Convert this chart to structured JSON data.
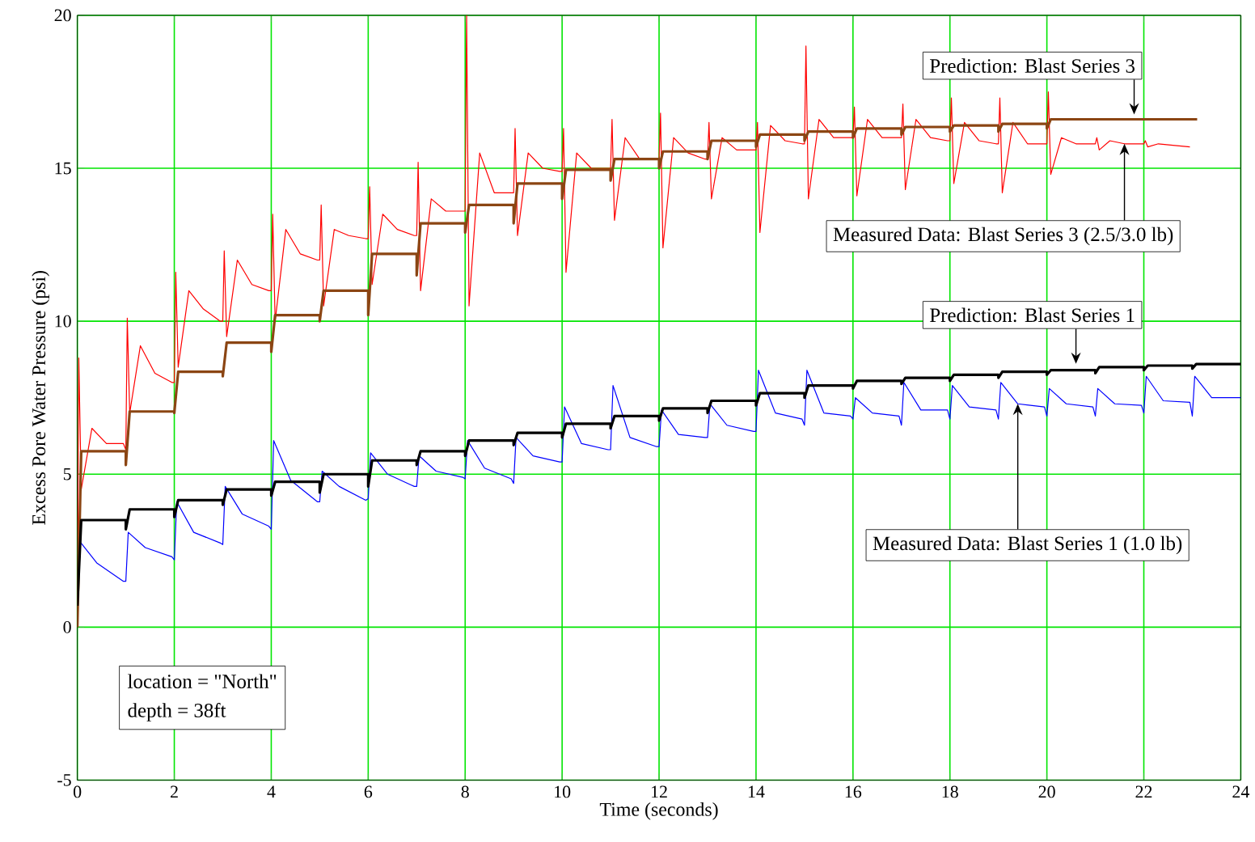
{
  "chart_data": {
    "type": "line",
    "xlabel": "Time (seconds)",
    "ylabel": "Excess Pore Water Pressure (psi)",
    "xlim": [
      0,
      24
    ],
    "ylim": [
      -5,
      20
    ],
    "xticks": [
      0,
      2,
      4,
      6,
      8,
      10,
      12,
      14,
      16,
      18,
      20,
      22,
      24
    ],
    "yticks": [
      -5,
      0,
      5,
      10,
      15,
      20
    ],
    "grid": true,
    "series": [
      {
        "color": "#ff0000",
        "x": [
          0,
          0.03,
          0.08,
          0.3,
          0.6,
          0.95,
          1,
          1.03,
          1.08,
          1.3,
          1.6,
          1.95,
          2,
          2.03,
          2.08,
          2.3,
          2.6,
          2.95,
          3,
          3.03,
          3.08,
          3.3,
          3.6,
          3.95,
          4,
          4.03,
          4.08,
          4.3,
          4.6,
          4.95,
          5,
          5.03,
          5.08,
          5.3,
          5.6,
          5.95,
          6,
          6.03,
          6.08,
          6.3,
          6.6,
          6.95,
          7,
          7.03,
          7.08,
          7.3,
          7.6,
          7.95,
          8,
          8.03,
          8.08,
          8.3,
          8.6,
          8.95,
          9,
          9.03,
          9.08,
          9.3,
          9.6,
          9.95,
          10,
          10.03,
          10.08,
          10.3,
          10.6,
          10.95,
          11,
          11.03,
          11.08,
          11.3,
          11.6,
          11.95,
          12,
          12.03,
          12.08,
          12.3,
          12.6,
          12.95,
          13,
          13.03,
          13.08,
          13.3,
          13.6,
          13.95,
          14,
          14.03,
          14.08,
          14.3,
          14.6,
          14.95,
          15,
          15.03,
          15.08,
          15.3,
          15.6,
          15.95,
          16,
          16.03,
          16.08,
          16.3,
          16.6,
          16.95,
          17,
          17.03,
          17.08,
          17.3,
          17.6,
          17.95,
          18,
          18.03,
          18.08,
          18.3,
          18.6,
          18.95,
          19,
          19.03,
          19.08,
          19.3,
          19.6,
          19.95,
          20,
          20.03,
          20.08,
          20.3,
          20.6,
          20.95,
          21,
          21.03,
          21.08,
          21.3,
          21.6,
          21.95,
          22,
          22.03,
          22.08,
          22.3,
          22.6,
          22.95
        ],
        "values": [
          0,
          8.8,
          4.5,
          6.5,
          6.0,
          6.0,
          5.8,
          10.1,
          7.0,
          9.2,
          8.3,
          8.0,
          8.0,
          11.6,
          8.5,
          11.0,
          10.4,
          10.0,
          10.0,
          12.3,
          9.5,
          12.0,
          11.2,
          11.0,
          11.0,
          13.5,
          10.0,
          13.0,
          12.2,
          12.0,
          12.0,
          13.8,
          10.5,
          13.0,
          12.8,
          12.7,
          12.7,
          14.4,
          11.2,
          13.5,
          13.0,
          12.8,
          12.8,
          15.2,
          11.0,
          14.0,
          13.6,
          13.6,
          13.6,
          20.0,
          10.5,
          15.5,
          14.2,
          14.2,
          14.2,
          16.3,
          12.8,
          15.5,
          15.0,
          14.9,
          14.9,
          16.3,
          11.6,
          15.5,
          15.0,
          15.0,
          15.0,
          16.6,
          13.3,
          16.0,
          15.3,
          15.3,
          15.3,
          16.8,
          12.4,
          16.0,
          15.5,
          15.3,
          15.3,
          16.5,
          14.0,
          16.0,
          15.6,
          15.6,
          15.6,
          16.5,
          12.9,
          16.4,
          15.9,
          15.8,
          15.8,
          19.0,
          14.0,
          16.6,
          16.0,
          16.0,
          16.0,
          17.0,
          14.1,
          16.6,
          16.0,
          16.0,
          16.0,
          17.1,
          14.3,
          16.6,
          16.0,
          15.9,
          15.9,
          17.3,
          14.5,
          16.5,
          15.9,
          15.8,
          15.8,
          17.3,
          14.2,
          16.5,
          15.8,
          15.8,
          15.8,
          17.5,
          14.8,
          16.0,
          15.8,
          15.8,
          15.8,
          16.0,
          15.6,
          15.9,
          15.8,
          15.8,
          15.8,
          15.9,
          15.7,
          15.8,
          15.75,
          15.7
        ]
      },
      {
        "color": "#8b4513",
        "x": [
          0,
          0.08,
          1,
          1,
          1.08,
          2,
          2,
          2.08,
          3,
          3,
          3.08,
          4,
          4,
          4.08,
          5,
          5,
          5.08,
          6,
          6,
          6.08,
          7,
          7,
          7.08,
          8,
          8,
          8.08,
          9,
          9,
          9.08,
          10,
          10,
          10.08,
          11,
          11,
          11.08,
          12,
          12,
          12.08,
          13,
          13,
          13.08,
          14,
          14,
          14.08,
          15,
          15,
          15.08,
          16,
          16,
          16.08,
          17,
          17,
          17.08,
          18,
          18,
          18.08,
          19,
          19,
          19.08,
          20,
          20,
          20.08,
          23.1
        ],
        "values": [
          0,
          5.75,
          5.75,
          5.3,
          7.05,
          7.05,
          7.0,
          8.35,
          8.35,
          8.2,
          9.3,
          9.3,
          9.0,
          10.2,
          10.2,
          10.0,
          11.0,
          11.0,
          10.2,
          12.2,
          12.2,
          11.5,
          13.2,
          13.2,
          12.9,
          13.8,
          13.8,
          13.2,
          14.5,
          14.5,
          14.0,
          14.95,
          14.95,
          14.6,
          15.3,
          15.3,
          15.0,
          15.55,
          15.55,
          15.3,
          15.9,
          15.9,
          15.7,
          16.1,
          16.1,
          15.9,
          16.2,
          16.2,
          16.0,
          16.3,
          16.3,
          16.1,
          16.35,
          16.35,
          16.2,
          16.4,
          16.4,
          16.2,
          16.45,
          16.45,
          16.3,
          16.6,
          16.6
        ]
      },
      {
        "color": "#0000ff",
        "x": [
          0.05,
          0.4,
          0.95,
          1,
          1.05,
          1.4,
          1.95,
          2,
          2.05,
          2.4,
          2.95,
          3,
          3.05,
          3.4,
          3.95,
          4,
          4.05,
          4.4,
          4.95,
          5,
          5.05,
          5.4,
          5.95,
          6,
          6.05,
          6.4,
          6.95,
          7,
          7.05,
          7.4,
          7.95,
          8,
          8.05,
          8.4,
          8.95,
          9,
          9.05,
          9.4,
          9.95,
          10,
          10.05,
          10.4,
          10.95,
          11,
          11.05,
          11.4,
          11.95,
          12,
          12.05,
          12.4,
          12.95,
          13,
          13.05,
          13.4,
          13.95,
          14,
          14.05,
          14.4,
          14.95,
          15,
          15.05,
          15.4,
          15.95,
          16,
          16.05,
          16.4,
          16.95,
          17,
          17.05,
          17.4,
          17.95,
          18,
          18.05,
          18.4,
          18.95,
          19,
          19.05,
          19.4,
          19.95,
          20,
          20.05,
          20.4,
          20.95,
          21,
          21.05,
          21.4,
          21.95,
          22,
          22.05,
          22.4,
          22.95,
          23,
          23.05,
          23.4,
          24
        ],
        "values": [
          2.8,
          2.1,
          1.5,
          1.5,
          3.1,
          2.6,
          2.3,
          2.2,
          4.1,
          3.1,
          2.75,
          2.7,
          4.6,
          3.7,
          3.3,
          3.2,
          6.1,
          4.8,
          4.1,
          4.1,
          5.1,
          4.6,
          4.15,
          4.2,
          5.7,
          5.0,
          4.6,
          4.6,
          5.6,
          5.1,
          4.9,
          4.85,
          6.1,
          5.2,
          4.85,
          4.7,
          6.2,
          5.6,
          5.4,
          5.4,
          7.2,
          6.0,
          5.8,
          5.8,
          7.9,
          6.2,
          5.9,
          5.9,
          7.1,
          6.3,
          6.2,
          6.2,
          7.3,
          6.6,
          6.4,
          6.4,
          8.4,
          7.0,
          6.8,
          6.6,
          8.4,
          7.0,
          6.9,
          6.8,
          7.5,
          7.0,
          6.9,
          6.6,
          8.0,
          7.1,
          7.1,
          6.8,
          7.9,
          7.2,
          7.1,
          6.8,
          8.0,
          7.3,
          7.2,
          6.9,
          7.8,
          7.3,
          7.2,
          6.9,
          7.8,
          7.3,
          7.25,
          7.0,
          8.2,
          7.4,
          7.35,
          6.9,
          8.2,
          7.5,
          7.5
        ]
      },
      {
        "color": "#000000",
        "x": [
          0,
          0.08,
          1,
          1,
          1.08,
          2,
          2,
          2.08,
          3,
          3,
          3.08,
          4,
          4,
          4.08,
          5,
          5,
          5.08,
          6,
          6,
          6.08,
          7,
          7,
          7.08,
          8,
          8,
          8.08,
          9,
          9,
          9.08,
          10,
          10,
          10.08,
          11,
          11,
          11.08,
          12,
          12,
          12.08,
          13,
          13,
          13.08,
          14,
          14,
          14.08,
          15,
          15,
          15.08,
          16,
          16,
          16.08,
          17,
          17,
          17.08,
          18,
          18,
          18.08,
          19,
          19,
          19.08,
          20,
          20,
          20.08,
          21,
          21,
          21.08,
          22,
          22,
          22.08,
          23,
          23,
          23.08,
          24
        ],
        "values": [
          0.7,
          3.5,
          3.5,
          3.2,
          3.85,
          3.85,
          3.6,
          4.15,
          4.15,
          4.0,
          4.5,
          4.5,
          4.3,
          4.75,
          4.75,
          4.4,
          5.0,
          5.0,
          4.6,
          5.45,
          5.45,
          5.3,
          5.75,
          5.75,
          5.6,
          6.1,
          6.1,
          5.95,
          6.35,
          6.35,
          6.2,
          6.65,
          6.65,
          6.5,
          6.9,
          6.9,
          6.75,
          7.15,
          7.15,
          7.0,
          7.4,
          7.4,
          7.25,
          7.65,
          7.65,
          7.5,
          7.9,
          7.9,
          7.8,
          8.05,
          8.05,
          7.95,
          8.15,
          8.15,
          8.05,
          8.25,
          8.25,
          8.15,
          8.35,
          8.35,
          8.25,
          8.4,
          8.4,
          8.3,
          8.5,
          8.5,
          8.4,
          8.55,
          8.55,
          8.45,
          8.6,
          8.6
        ]
      }
    ],
    "annotations": [
      {
        "text": "Prediction:  Blast Series 3",
        "x": 21.8,
        "y": 16.6
      },
      {
        "text": "Measured Data:  Blast Series 3 (2.5/3.0 lb)",
        "x": 21.6,
        "y": 15.8
      },
      {
        "text": "Prediction:  Blast Series 1",
        "x": 20.6,
        "y": 8.45
      },
      {
        "text": "Measured Data:  Blast Series 1 (1.0 lb)",
        "x": 19.4,
        "y": 7.3
      },
      "location = \"North\"",
      "depth = 38ft"
    ]
  }
}
